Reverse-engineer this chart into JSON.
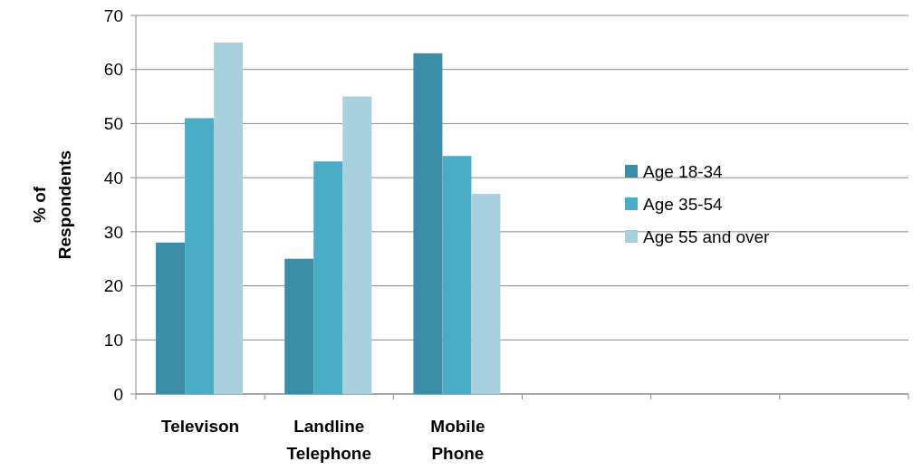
{
  "chart_data": {
    "type": "bar",
    "ylabel": "% of Respondents",
    "categories": [
      "Televison",
      "Landline Telephone",
      "Mobile Phone",
      null,
      null,
      null
    ],
    "series": [
      {
        "name": "Age 18-34",
        "color": "#3b8ea5",
        "values": [
          28,
          25,
          63,
          null,
          null,
          null
        ]
      },
      {
        "name": "Age 35-54",
        "color": "#4bacc6",
        "values": [
          51,
          43,
          44,
          null,
          null,
          null
        ]
      },
      {
        "name": "Age 55 and over",
        "color": "#a9d0de",
        "values": [
          65,
          55,
          37,
          null,
          null,
          null
        ]
      }
    ],
    "ylim": [
      0,
      70
    ],
    "yticks": [
      0,
      10,
      20,
      30,
      40,
      50,
      60,
      70
    ],
    "grid": "y",
    "legend": "right"
  }
}
